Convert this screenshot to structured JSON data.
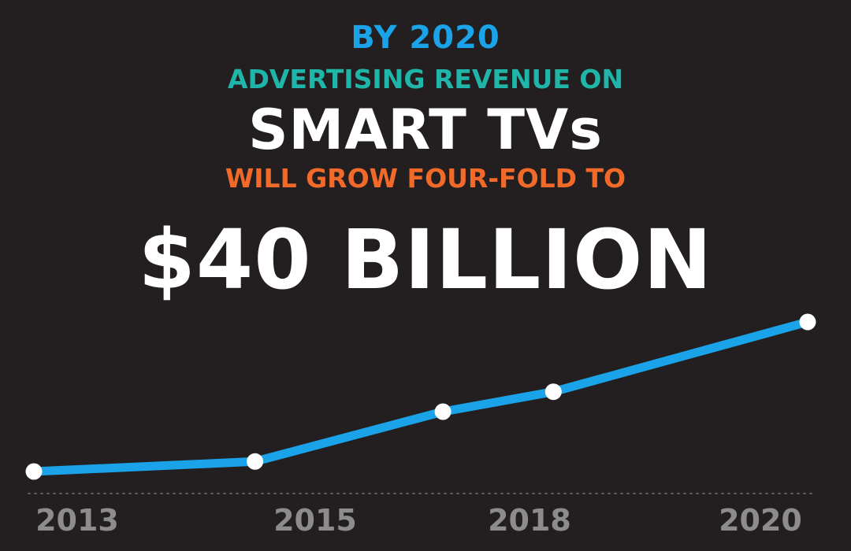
{
  "headline": {
    "line1": "BY 2020",
    "line2": "ADVERTISING REVENUE ON",
    "line3": "SMART TVs",
    "line4": "WILL GROW FOUR-FOLD TO",
    "line5": "$40 BILLION"
  },
  "colors": {
    "background": "#231f20",
    "line1": "#1aa3e8",
    "line2": "#1fb5a8",
    "line3": "#ffffff",
    "line4": "#f26a2a",
    "line5": "#ffffff",
    "series_line": "#1aa3e8",
    "marker": "#ffffff",
    "axis": "#8a8a8a",
    "tick_text": "#8c8c8c"
  },
  "chart_data": {
    "type": "line",
    "title": "",
    "xlabel": "",
    "ylabel": "",
    "grid": false,
    "legend": "none",
    "x_ticks": [
      "2013",
      "2015",
      "2018",
      "2020"
    ],
    "series": [
      {
        "name": "",
        "x": [
          2013,
          2015,
          2016.7,
          2017.7,
          2020
        ],
        "y": [
          10,
          12,
          22,
          26,
          40
        ]
      }
    ],
    "xlim": [
      2013,
      2020
    ],
    "ylim": [
      10,
      40
    ]
  }
}
